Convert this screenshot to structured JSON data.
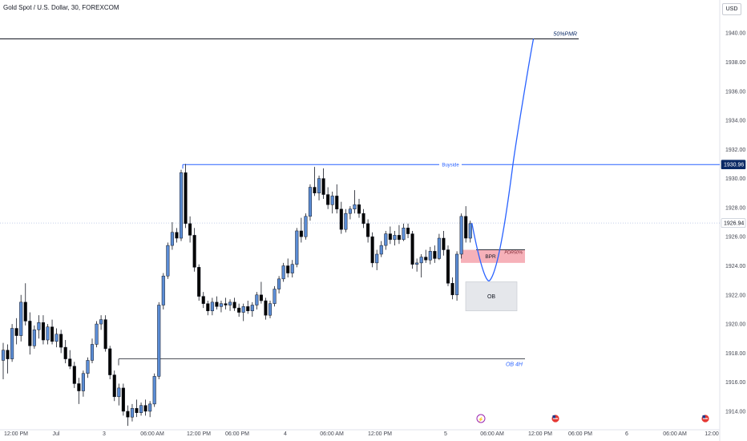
{
  "title": "Gold Spot / U.S. Dollar, 30, FOREXCOM",
  "currency": "USD",
  "colors": {
    "bull_fill": "#5b8dd6",
    "bear_fill": "#000000",
    "wick": "#131722",
    "projection": "#2962ff",
    "buyside_line": "#2962ff",
    "price_line": "#90a4d4",
    "bpr_zone": "#f5a3ad",
    "ob_zone": "#e5e7eb",
    "axis_text": "#434651",
    "label_dark": "#0b2a66"
  },
  "chart_data": {
    "type": "candlestick",
    "y_axis": {
      "min": 1913.5,
      "max": 1941.5,
      "ticks": [
        1914,
        1916,
        1918,
        1920,
        1922,
        1924,
        1926,
        1928,
        1930,
        1932,
        1934,
        1936,
        1938,
        1940
      ],
      "tick_labels": [
        "1914.00",
        "1916.00",
        "1918.00",
        "1920.00",
        "1922.00",
        "1924.00",
        "1926.00",
        "1928.00",
        "1930.00",
        "1932.00",
        "1934.00",
        "1936.00",
        "1938.00",
        "1940.00"
      ]
    },
    "x_axis_labels": [
      "12:00 PM",
      "Jul",
      "3",
      "06:00 AM",
      "12:00 PM",
      "06:00 PM",
      "4",
      "06:00 AM",
      "12:00 PM",
      "5",
      "06:00 AM",
      "12:00 PM",
      "06:00 PM",
      "6",
      "06:00 AM",
      "12:00"
    ],
    "price_labels": [
      {
        "value": 1930.96,
        "text": "1930.96"
      },
      {
        "value": 1926.94,
        "text": "1926.94"
      }
    ],
    "levels": [
      {
        "name": "50%PMR",
        "value": 1939.6
      },
      {
        "name": "Buyside",
        "value": 1930.96
      },
      {
        "name": "OB 4H",
        "value": 1917.6
      },
      {
        "name": "current",
        "value": 1926.94
      }
    ],
    "zones": [
      {
        "name": "BPR",
        "label": "BPR",
        "top": 1925.1,
        "bottom": 1924.2
      },
      {
        "name": "PDR50%",
        "label": "PDR50%",
        "top": 1925.1,
        "bottom": 1924.2
      },
      {
        "name": "OB",
        "label": "OB",
        "top": 1922.9,
        "bottom": 1920.9
      }
    ],
    "candles": [
      [
        1917.5,
        1918.7,
        1916.2,
        1918.2
      ],
      [
        1918.2,
        1918.6,
        1916.6,
        1917.6
      ],
      [
        1917.6,
        1920.0,
        1917.4,
        1919.7
      ],
      [
        1919.7,
        1920.4,
        1918.6,
        1919.2
      ],
      [
        1919.2,
        1922.0,
        1918.8,
        1921.5
      ],
      [
        1921.5,
        1922.8,
        1919.9,
        1920.2
      ],
      [
        1920.2,
        1920.8,
        1917.9,
        1918.5
      ],
      [
        1918.5,
        1919.9,
        1918.3,
        1919.6
      ],
      [
        1919.6,
        1920.6,
        1919.0,
        1920.1
      ],
      [
        1920.1,
        1920.6,
        1918.6,
        1918.9
      ],
      [
        1918.9,
        1920.0,
        1918.6,
        1919.8
      ],
      [
        1919.8,
        1920.3,
        1918.6,
        1918.8
      ],
      [
        1918.8,
        1919.7,
        1918.4,
        1919.3
      ],
      [
        1919.3,
        1919.6,
        1918.0,
        1918.4
      ],
      [
        1918.4,
        1918.9,
        1917.3,
        1917.6
      ],
      [
        1917.6,
        1918.2,
        1916.9,
        1917.1
      ],
      [
        1917.1,
        1917.4,
        1915.6,
        1915.9
      ],
      [
        1915.9,
        1916.3,
        1914.5,
        1915.4
      ],
      [
        1915.4,
        1916.8,
        1915.0,
        1916.6
      ],
      [
        1916.6,
        1917.7,
        1916.3,
        1917.5
      ],
      [
        1917.5,
        1919.0,
        1917.3,
        1918.6
      ],
      [
        1918.6,
        1920.2,
        1918.4,
        1920.0
      ],
      [
        1920.0,
        1920.6,
        1919.6,
        1920.3
      ],
      [
        1920.3,
        1920.6,
        1918.1,
        1918.3
      ],
      [
        1918.3,
        1918.5,
        1916.2,
        1916.5
      ],
      [
        1916.5,
        1916.8,
        1914.7,
        1915.0
      ],
      [
        1915.0,
        1915.9,
        1914.4,
        1915.6
      ],
      [
        1915.6,
        1915.9,
        1913.7,
        1914.0
      ],
      [
        1914.0,
        1914.4,
        1913.0,
        1913.6
      ],
      [
        1913.6,
        1914.5,
        1913.3,
        1914.2
      ],
      [
        1914.2,
        1914.8,
        1913.6,
        1913.9
      ],
      [
        1913.9,
        1914.6,
        1913.7,
        1914.4
      ],
      [
        1914.4,
        1914.8,
        1913.7,
        1914.0
      ],
      [
        1914.0,
        1914.7,
        1913.6,
        1914.5
      ],
      [
        1914.5,
        1916.6,
        1914.3,
        1916.4
      ],
      [
        1916.4,
        1921.5,
        1916.2,
        1921.3
      ],
      [
        1921.3,
        1923.5,
        1921.0,
        1923.3
      ],
      [
        1923.3,
        1925.6,
        1923.1,
        1925.4
      ],
      [
        1925.4,
        1927.0,
        1925.1,
        1926.3
      ],
      [
        1926.3,
        1926.6,
        1925.6,
        1925.9
      ],
      [
        1925.9,
        1930.6,
        1925.7,
        1930.4
      ],
      [
        1930.4,
        1931.0,
        1926.6,
        1926.9
      ],
      [
        1926.9,
        1927.4,
        1925.6,
        1926.1
      ],
      [
        1926.1,
        1926.6,
        1923.6,
        1923.9
      ],
      [
        1923.9,
        1924.1,
        1921.6,
        1921.9
      ],
      [
        1921.9,
        1922.2,
        1921.1,
        1921.4
      ],
      [
        1921.4,
        1921.6,
        1920.6,
        1920.9
      ],
      [
        1920.9,
        1921.8,
        1920.6,
        1921.5
      ],
      [
        1921.5,
        1921.9,
        1921.0,
        1921.2
      ],
      [
        1921.2,
        1921.6,
        1920.8,
        1921.4
      ],
      [
        1921.4,
        1921.8,
        1921.0,
        1921.3
      ],
      [
        1921.3,
        1921.7,
        1920.9,
        1921.5
      ],
      [
        1921.5,
        1921.8,
        1920.9,
        1921.1
      ],
      [
        1921.1,
        1921.4,
        1920.5,
        1920.8
      ],
      [
        1920.8,
        1921.4,
        1920.2,
        1921.2
      ],
      [
        1921.2,
        1921.6,
        1920.7,
        1920.9
      ],
      [
        1920.9,
        1921.5,
        1920.5,
        1921.3
      ],
      [
        1921.3,
        1922.2,
        1921.0,
        1922.0
      ],
      [
        1922.0,
        1922.9,
        1921.4,
        1921.6
      ],
      [
        1921.6,
        1921.8,
        1920.3,
        1920.6
      ],
      [
        1920.6,
        1921.6,
        1920.4,
        1921.4
      ],
      [
        1921.4,
        1922.6,
        1921.2,
        1922.4
      ],
      [
        1922.4,
        1923.3,
        1922.1,
        1923.1
      ],
      [
        1923.1,
        1924.2,
        1922.9,
        1924.0
      ],
      [
        1924.0,
        1924.5,
        1923.2,
        1923.5
      ],
      [
        1923.5,
        1924.4,
        1923.2,
        1924.1
      ],
      [
        1924.1,
        1926.6,
        1923.9,
        1926.4
      ],
      [
        1926.4,
        1927.3,
        1925.6,
        1926.0
      ],
      [
        1926.0,
        1927.6,
        1925.8,
        1927.4
      ],
      [
        1927.4,
        1929.6,
        1927.1,
        1929.4
      ],
      [
        1929.4,
        1930.8,
        1928.8,
        1929.0
      ],
      [
        1929.0,
        1930.2,
        1928.5,
        1930.0
      ],
      [
        1930.0,
        1930.7,
        1928.6,
        1928.9
      ],
      [
        1928.9,
        1929.4,
        1927.9,
        1928.2
      ],
      [
        1928.2,
        1929.1,
        1927.6,
        1928.8
      ],
      [
        1928.8,
        1929.6,
        1927.6,
        1927.9
      ],
      [
        1927.9,
        1928.4,
        1926.2,
        1926.5
      ],
      [
        1926.5,
        1927.9,
        1926.3,
        1927.6
      ],
      [
        1927.6,
        1928.1,
        1927.2,
        1927.9
      ],
      [
        1927.9,
        1929.2,
        1927.6,
        1928.2
      ],
      [
        1928.2,
        1928.6,
        1927.3,
        1927.6
      ],
      [
        1927.6,
        1927.9,
        1926.6,
        1926.9
      ],
      [
        1926.9,
        1927.2,
        1925.6,
        1926.0
      ],
      [
        1926.0,
        1926.3,
        1923.9,
        1924.2
      ],
      [
        1924.2,
        1925.1,
        1923.7,
        1924.8
      ],
      [
        1924.8,
        1925.7,
        1924.6,
        1925.4
      ],
      [
        1925.4,
        1926.4,
        1925.1,
        1926.2
      ],
      [
        1926.2,
        1926.7,
        1925.5,
        1925.8
      ],
      [
        1925.8,
        1926.4,
        1925.4,
        1926.1
      ],
      [
        1926.1,
        1926.8,
        1925.5,
        1925.8
      ],
      [
        1925.8,
        1926.9,
        1925.7,
        1926.6
      ],
      [
        1926.6,
        1926.9,
        1925.9,
        1926.2
      ],
      [
        1926.2,
        1926.4,
        1923.8,
        1924.1
      ],
      [
        1924.1,
        1924.5,
        1923.6,
        1924.2
      ],
      [
        1924.2,
        1924.8,
        1923.2,
        1924.6
      ],
      [
        1924.6,
        1925.1,
        1924.2,
        1924.4
      ],
      [
        1924.4,
        1925.3,
        1924.1,
        1925.0
      ],
      [
        1925.0,
        1925.4,
        1924.2,
        1924.5
      ],
      [
        1924.5,
        1926.2,
        1924.4,
        1925.9
      ],
      [
        1925.9,
        1926.4,
        1924.7,
        1925.1
      ],
      [
        1925.1,
        1925.4,
        1922.6,
        1922.8
      ],
      [
        1922.8,
        1923.2,
        1921.7,
        1922.0
      ],
      [
        1922.0,
        1925.0,
        1921.6,
        1924.8
      ],
      [
        1924.8,
        1927.6,
        1924.5,
        1927.4
      ],
      [
        1927.4,
        1928.1,
        1925.6,
        1925.9
      ],
      [
        1925.9,
        1927.1,
        1925.6,
        1926.9
      ]
    ],
    "projection_path": [
      [
        1926.94,
        0
      ],
      [
        1924.6,
        0.25
      ],
      [
        1923.2,
        0.55
      ],
      [
        1923.0,
        0.7
      ],
      [
        1924.0,
        0.9
      ],
      [
        1930.96,
        1.6
      ],
      [
        1939.6,
        2.4
      ]
    ]
  }
}
